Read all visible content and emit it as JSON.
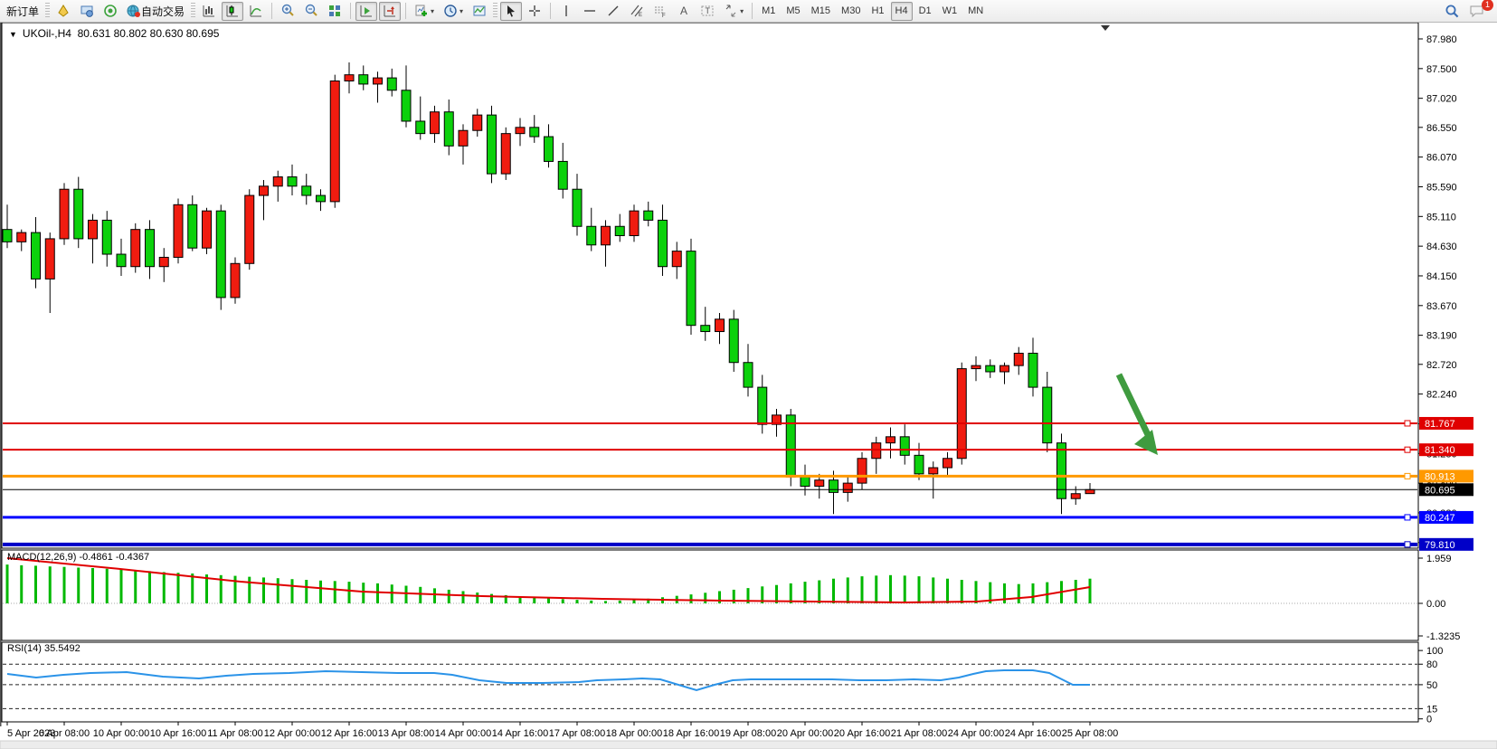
{
  "toolbar": {
    "new_order": "新订单",
    "auto_trading": "自动交易",
    "timeframes": [
      "M1",
      "M5",
      "M15",
      "M30",
      "H1",
      "H4",
      "D1",
      "W1",
      "MN"
    ],
    "active_timeframe": "H4",
    "notification_count": "1",
    "icons": [
      "new-order-icon",
      "accounts-icon",
      "signals-icon",
      "autotrade-globe-icon",
      "bar-chart-icon",
      "candlestick-chart-icon",
      "line-chart-icon",
      "zoom-in-icon",
      "zoom-out-icon",
      "tile-windows-icon",
      "auto-scroll-icon",
      "chart-shift-icon",
      "indicators-icon",
      "periods-clock-icon",
      "template-icon",
      "cursor-icon",
      "crosshair-icon",
      "vertical-line-icon",
      "horizontal-line-icon",
      "trendline-icon",
      "channel-icon",
      "fibonacci-icon",
      "text-icon",
      "label-icon",
      "arrows-icon",
      "search-icon",
      "chat-icon"
    ]
  },
  "chart": {
    "header": "UKOil-,H4  80.631 80.802 80.630 80.695",
    "symbol": "UKOil-",
    "timeframe": "H4",
    "macd_label": "MACD(12,26,9) -0.4861 -0.4367",
    "rsi_label": "RSI(14) 35.5492"
  },
  "chart_data": {
    "type": "candlestick",
    "symbol": "UKOil-",
    "period": "H4",
    "current_ohlc": {
      "open": "80.631",
      "high": "80.802",
      "low": "80.630",
      "close": "80.695"
    },
    "ylim": [
      79.6,
      88.1
    ],
    "price_ticks": [
      87.98,
      87.5,
      87.02,
      86.55,
      86.07,
      85.59,
      85.11,
      84.63,
      84.15,
      83.67,
      83.19,
      82.72,
      82.24,
      81.76,
      81.28,
      80.8,
      80.32,
      79.84
    ],
    "time_labels": [
      "5 Apr 2023",
      "6 Apr 08:00",
      "10 Apr 00:00",
      "10 Apr 16:00",
      "11 Apr 08:00",
      "12 Apr 00:00",
      "12 Apr 16:00",
      "13 Apr 08:00",
      "14 Apr 00:00",
      "14 Apr 16:00",
      "17 Apr 08:00",
      "18 Apr 00:00",
      "18 Apr 16:00",
      "19 Apr 08:00",
      "20 Apr 00:00",
      "20 Apr 16:00",
      "21 Apr 08:00",
      "24 Apr 00:00",
      "24 Apr 16:00",
      "25 Apr 08:00"
    ],
    "colors": {
      "bull": "#f01c10",
      "bear": "#0cd10c",
      "wick": "#000000",
      "macd_hist": "#00b800",
      "macd_signal": "#e00000",
      "rsi_line": "#2b93e8",
      "arrow": "#3f9b3f"
    },
    "candles": [
      [
        84.9,
        85.3,
        84.6,
        84.7
      ],
      [
        84.7,
        84.9,
        84.55,
        84.85
      ],
      [
        84.85,
        85.1,
        83.95,
        84.1
      ],
      [
        84.1,
        84.85,
        83.55,
        84.75
      ],
      [
        84.75,
        85.65,
        84.65,
        85.55
      ],
      [
        85.55,
        85.75,
        84.6,
        84.75
      ],
      [
        84.75,
        85.15,
        84.35,
        85.05
      ],
      [
        85.05,
        85.2,
        84.3,
        84.5
      ],
      [
        84.5,
        84.75,
        84.15,
        84.3
      ],
      [
        84.3,
        85.0,
        84.2,
        84.9
      ],
      [
        84.9,
        85.05,
        84.1,
        84.3
      ],
      [
        84.3,
        84.6,
        84.05,
        84.45
      ],
      [
        84.45,
        85.4,
        84.35,
        85.3
      ],
      [
        85.3,
        85.45,
        84.55,
        84.6
      ],
      [
        84.6,
        85.25,
        84.5,
        85.2
      ],
      [
        85.2,
        85.3,
        83.6,
        83.8
      ],
      [
        83.8,
        84.45,
        83.7,
        84.35
      ],
      [
        84.35,
        85.55,
        84.25,
        85.45
      ],
      [
        85.45,
        85.7,
        85.05,
        85.6
      ],
      [
        85.6,
        85.85,
        85.35,
        85.75
      ],
      [
        85.75,
        85.95,
        85.45,
        85.6
      ],
      [
        85.6,
        85.8,
        85.3,
        85.45
      ],
      [
        85.45,
        85.55,
        85.2,
        85.35
      ],
      [
        85.35,
        87.4,
        85.25,
        87.3
      ],
      [
        87.3,
        87.6,
        87.1,
        87.4
      ],
      [
        87.4,
        87.55,
        87.15,
        87.25
      ],
      [
        87.25,
        87.45,
        86.95,
        87.35
      ],
      [
        87.35,
        87.5,
        87.05,
        87.15
      ],
      [
        87.15,
        87.55,
        86.55,
        86.65
      ],
      [
        86.65,
        87.05,
        86.35,
        86.45
      ],
      [
        86.45,
        86.9,
        86.3,
        86.8
      ],
      [
        86.8,
        87.0,
        86.1,
        86.25
      ],
      [
        86.25,
        86.6,
        85.95,
        86.5
      ],
      [
        86.5,
        86.85,
        86.4,
        86.75
      ],
      [
        86.75,
        86.9,
        85.65,
        85.8
      ],
      [
        85.8,
        86.55,
        85.7,
        86.45
      ],
      [
        86.45,
        86.7,
        86.25,
        86.55
      ],
      [
        86.55,
        86.75,
        86.3,
        86.4
      ],
      [
        86.4,
        86.6,
        85.9,
        86.0
      ],
      [
        86.0,
        86.3,
        85.4,
        85.55
      ],
      [
        85.55,
        85.8,
        84.8,
        84.95
      ],
      [
        84.95,
        85.25,
        84.55,
        84.65
      ],
      [
        84.65,
        85.05,
        84.3,
        84.95
      ],
      [
        84.95,
        85.15,
        84.7,
        84.8
      ],
      [
        84.8,
        85.3,
        84.7,
        85.2
      ],
      [
        85.2,
        85.35,
        84.95,
        85.05
      ],
      [
        85.05,
        85.3,
        84.15,
        84.3
      ],
      [
        84.3,
        84.7,
        84.1,
        84.55
      ],
      [
        84.55,
        84.75,
        83.2,
        83.35
      ],
      [
        83.35,
        83.65,
        83.1,
        83.25
      ],
      [
        83.25,
        83.55,
        83.05,
        83.45
      ],
      [
        83.45,
        83.6,
        82.6,
        82.75
      ],
      [
        82.75,
        83.05,
        82.2,
        82.35
      ],
      [
        82.35,
        82.55,
        81.6,
        81.75
      ],
      [
        81.75,
        82.0,
        81.55,
        81.9
      ],
      [
        81.9,
        82.0,
        80.75,
        80.9
      ],
      [
        80.9,
        81.1,
        80.6,
        80.75
      ],
      [
        80.75,
        80.95,
        80.55,
        80.85
      ],
      [
        80.85,
        81.0,
        80.3,
        80.65
      ],
      [
        80.65,
        80.9,
        80.5,
        80.8
      ],
      [
        80.8,
        81.3,
        80.7,
        81.2
      ],
      [
        81.2,
        81.55,
        80.95,
        81.45
      ],
      [
        81.45,
        81.7,
        81.2,
        81.55
      ],
      [
        81.55,
        81.75,
        81.1,
        81.25
      ],
      [
        81.25,
        81.45,
        80.85,
        80.95
      ],
      [
        80.95,
        81.15,
        80.55,
        81.05
      ],
      [
        81.05,
        81.3,
        80.9,
        81.2
      ],
      [
        81.2,
        82.75,
        81.1,
        82.65
      ],
      [
        82.65,
        82.85,
        82.45,
        82.7
      ],
      [
        82.7,
        82.8,
        82.5,
        82.6
      ],
      [
        82.6,
        82.75,
        82.4,
        82.7
      ],
      [
        82.7,
        83.0,
        82.55,
        82.9
      ],
      [
        82.9,
        83.15,
        82.2,
        82.35
      ],
      [
        82.35,
        82.6,
        81.3,
        81.45
      ],
      [
        81.45,
        81.6,
        80.3,
        80.55
      ],
      [
        80.55,
        80.75,
        80.45,
        80.63
      ],
      [
        80.631,
        80.802,
        80.63,
        80.695
      ]
    ],
    "hlines": [
      {
        "price": 81.767,
        "label": "81.767",
        "color": "#e00000",
        "width": 2
      },
      {
        "price": 81.34,
        "label": "81.340",
        "color": "#e00000",
        "width": 2
      },
      {
        "price": 80.913,
        "label": "80.913",
        "color": "#ff9900",
        "width": 3
      },
      {
        "price": 80.695,
        "label": "80.695",
        "color": "#000000",
        "width": 1
      },
      {
        "price": 80.247,
        "label": "80.247",
        "color": "#0000ff",
        "width": 3
      },
      {
        "price": 79.81,
        "label": "79.810",
        "color": "#0000c8",
        "width": 4
      }
    ],
    "macd": {
      "name": "MACD(12,26,9)",
      "value": "-0.4861",
      "signal_value": "-0.4367",
      "axis_ticks": [
        "1.959",
        "0.00",
        "-1.3235"
      ],
      "hist": [
        1.65,
        1.62,
        1.6,
        1.57,
        1.55,
        1.52,
        1.5,
        1.47,
        1.44,
        1.4,
        1.37,
        1.33,
        1.3,
        1.27,
        1.23,
        1.2,
        1.17,
        1.13,
        1.1,
        1.07,
        1.03,
        1.0,
        0.97,
        0.95,
        0.92,
        0.88,
        0.85,
        0.8,
        0.75,
        0.7,
        0.64,
        0.58,
        0.52,
        0.46,
        0.4,
        0.35,
        0.3,
        0.26,
        0.22,
        0.18,
        0.15,
        0.12,
        0.1,
        0.12,
        0.15,
        0.2,
        0.26,
        0.32,
        0.38,
        0.45,
        0.52,
        0.58,
        0.65,
        0.72,
        0.78,
        0.85,
        0.92,
        0.98,
        1.05,
        1.1,
        1.15,
        1.18,
        1.2,
        1.18,
        1.15,
        1.1,
        1.05,
        1.0,
        0.95,
        0.9,
        0.85,
        0.82,
        0.85,
        0.9,
        0.95,
        1.0,
        1.05
      ],
      "signal_pts": [
        [
          8,
          617
        ],
        [
          133,
          629
        ],
        [
          266,
          643
        ],
        [
          400,
          654
        ],
        [
          533,
          659
        ],
        [
          666,
          662
        ],
        [
          800,
          664
        ],
        [
          900,
          665
        ],
        [
          1000,
          666
        ],
        [
          1080,
          665
        ],
        [
          1140,
          660
        ],
        [
          1205,
          649
        ]
      ]
    },
    "rsi": {
      "name": "RSI(14)",
      "value": "35.5492",
      "axis_ticks": [
        "100",
        "80",
        "50",
        "15",
        "0"
      ],
      "levels": [
        80,
        50,
        15
      ],
      "pts": [
        [
          8,
          745
        ],
        [
          40,
          749
        ],
        [
          70,
          746
        ],
        [
          100,
          744
        ],
        [
          140,
          743
        ],
        [
          180,
          748
        ],
        [
          220,
          750
        ],
        [
          250,
          747
        ],
        [
          280,
          745
        ],
        [
          320,
          744
        ],
        [
          360,
          742
        ],
        [
          400,
          743
        ],
        [
          440,
          744
        ],
        [
          480,
          744
        ],
        [
          500,
          746
        ],
        [
          530,
          752
        ],
        [
          560,
          755
        ],
        [
          600,
          755
        ],
        [
          640,
          754
        ],
        [
          660,
          752
        ],
        [
          690,
          751
        ],
        [
          710,
          750
        ],
        [
          730,
          751
        ],
        [
          750,
          757
        ],
        [
          770,
          763
        ],
        [
          790,
          757
        ],
        [
          810,
          752
        ],
        [
          830,
          751
        ],
        [
          860,
          751
        ],
        [
          890,
          751
        ],
        [
          920,
          751
        ],
        [
          950,
          752
        ],
        [
          980,
          752
        ],
        [
          1010,
          751
        ],
        [
          1040,
          752
        ],
        [
          1060,
          749
        ],
        [
          1076,
          745
        ],
        [
          1090,
          742
        ],
        [
          1110,
          741
        ],
        [
          1142,
          741
        ],
        [
          1160,
          744
        ],
        [
          1172,
          750
        ],
        [
          1186,
          757
        ],
        [
          1205,
          757
        ]
      ]
    },
    "annotations": [
      {
        "kind": "arrow-down-right",
        "from": [
          1237,
          414
        ],
        "to": [
          1280,
          503
        ],
        "color": "#3f9b3f"
      },
      {
        "kind": "chart-shift-marker",
        "x": 1222,
        "y": 28
      }
    ]
  }
}
